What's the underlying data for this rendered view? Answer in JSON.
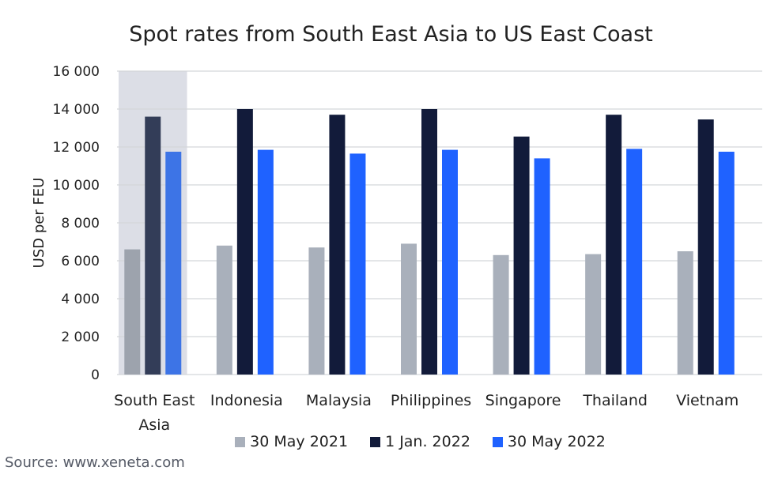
{
  "chart_data": {
    "type": "bar",
    "title": "Spot rates from South East Asia to US East Coast",
    "ylabel": "USD per FEU",
    "xlabel": "",
    "ylim": [
      0,
      16000
    ],
    "yticks": [
      0,
      2000,
      4000,
      6000,
      8000,
      10000,
      12000,
      14000,
      16000
    ],
    "ytick_labels": [
      "0",
      "2 000",
      "4 000",
      "6 000",
      "8 000",
      "10 000",
      "12 000",
      "14 000",
      "16 000"
    ],
    "categories": [
      "South East Asia",
      "Indonesia",
      "Malaysia",
      "Philippines",
      "Singapore",
      "Thailand",
      "Vietnam"
    ],
    "category_label_lines": [
      [
        "South East",
        "Asia"
      ],
      [
        "Indonesia"
      ],
      [
        "Malaysia"
      ],
      [
        "Philippines"
      ],
      [
        "Singapore"
      ],
      [
        "Thailand"
      ],
      [
        "Vietnam"
      ]
    ],
    "highlighted_category": "South East Asia",
    "series": [
      {
        "name": "30 May 2021",
        "color": "#a9b0bb",
        "values": [
          6600,
          6800,
          6700,
          6900,
          6300,
          6350,
          6500
        ]
      },
      {
        "name": "1 Jan. 2022",
        "color": "#121b3a",
        "values": [
          13600,
          14000,
          13700,
          14000,
          12550,
          13700,
          13450
        ]
      },
      {
        "name": "30 May 2022",
        "color": "#1f62ff",
        "values": [
          11750,
          11850,
          11650,
          11850,
          11400,
          11900,
          11750
        ]
      }
    ],
    "grid": true,
    "legend_position": "bottom"
  },
  "source": "Source: www.xeneta.com"
}
